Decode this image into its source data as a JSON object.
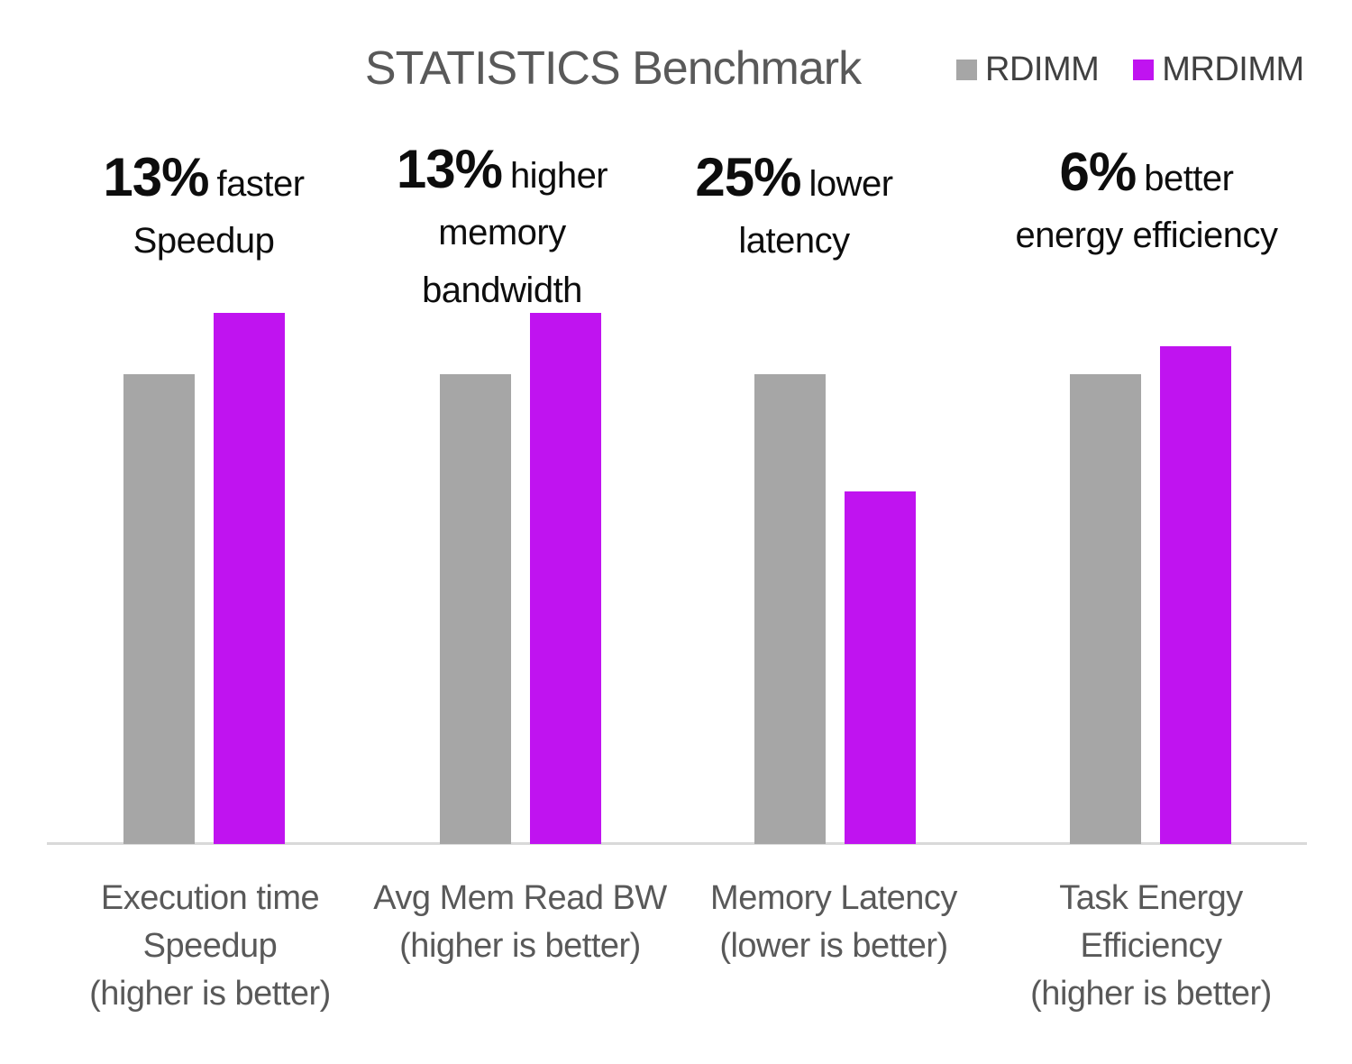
{
  "title": "STATISTICS Benchmark",
  "legend": [
    {
      "label": "RDIMM",
      "color": "#A6A6A6"
    },
    {
      "label": "MRDIMM",
      "color": "#C013F0"
    }
  ],
  "annotations": [
    {
      "pct": "13%",
      "suffix": "faster",
      "lines": [
        "Speedup"
      ]
    },
    {
      "pct": "13%",
      "suffix": "higher",
      "lines": [
        "memory",
        "bandwidth"
      ]
    },
    {
      "pct": "25%",
      "suffix": "lower",
      "lines": [
        "latency"
      ]
    },
    {
      "pct": "6%",
      "suffix": "better",
      "lines": [
        "energy efficiency"
      ]
    }
  ],
  "colors": {
    "rdimm_bar": "#A6A6A6",
    "mrdimm_bar": "#C013F0",
    "title_text": "#595959",
    "legend_text": "#404040",
    "annotation_text": "#0D0D0D",
    "category_text": "#595959",
    "axis_line": "#D9D9D9"
  },
  "chart_data": {
    "type": "bar",
    "title": "STATISTICS Benchmark",
    "categories": [
      [
        "Execution time",
        "Speedup",
        "(higher is better)"
      ],
      [
        "Avg Mem Read BW",
        "(higher is better)"
      ],
      [
        "Memory Latency",
        "(lower is better)"
      ],
      [
        "Task Energy",
        "Efficiency",
        "(higher is better)"
      ]
    ],
    "series": [
      {
        "name": "RDIMM",
        "color": "#A6A6A6",
        "values": [
          1.0,
          1.0,
          1.0,
          1.0
        ]
      },
      {
        "name": "MRDIMM",
        "color": "#C013F0",
        "values": [
          1.13,
          1.13,
          0.75,
          1.06
        ]
      }
    ],
    "value_axis": {
      "visible": false,
      "normalized_to_rdimm": true,
      "ylim": [
        0,
        1.25
      ]
    },
    "gridlines": false,
    "legend_position": "top-right"
  }
}
